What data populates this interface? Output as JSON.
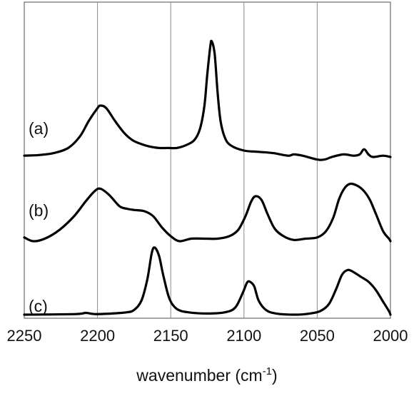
{
  "chart_data": {
    "type": "line",
    "title": "",
    "xlabel_main": "wavenumber (cm",
    "xlabel_sup": "-1",
    "xlabel_close": ")",
    "ylabel": "",
    "xlim": [
      2250,
      2000
    ],
    "x_reversed": true,
    "xticks": [
      2250,
      2200,
      2150,
      2100,
      2050,
      2000
    ],
    "xtick_labels": [
      "2250",
      "2200",
      "2150",
      "2100",
      "2050",
      "2000"
    ],
    "grid": "vertical",
    "line_color": "#000000",
    "series": [
      {
        "name": "(a)",
        "points": [
          [
            2250,
            0.01
          ],
          [
            2240,
            0.015
          ],
          [
            2230,
            0.03
          ],
          [
            2220,
            0.07
          ],
          [
            2212,
            0.16
          ],
          [
            2206,
            0.28
          ],
          [
            2200,
            0.38
          ],
          [
            2198,
            0.4
          ],
          [
            2194,
            0.38
          ],
          [
            2188,
            0.28
          ],
          [
            2182,
            0.19
          ],
          [
            2176,
            0.13
          ],
          [
            2170,
            0.1
          ],
          [
            2164,
            0.08
          ],
          [
            2158,
            0.07
          ],
          [
            2152,
            0.07
          ],
          [
            2146,
            0.07
          ],
          [
            2140,
            0.09
          ],
          [
            2134,
            0.13
          ],
          [
            2130,
            0.22
          ],
          [
            2127,
            0.4
          ],
          [
            2125,
            0.65
          ],
          [
            2123,
            0.86
          ],
          [
            2122,
            0.9
          ],
          [
            2120,
            0.8
          ],
          [
            2118,
            0.5
          ],
          [
            2116,
            0.28
          ],
          [
            2113,
            0.15
          ],
          [
            2109,
            0.09
          ],
          [
            2100,
            0.05
          ],
          [
            2090,
            0.04
          ],
          [
            2080,
            0.03
          ],
          [
            2070,
            0.01
          ],
          [
            2066,
            0.02
          ],
          [
            2060,
            0.01
          ],
          [
            2050,
            -0.02
          ],
          [
            2045,
            -0.02
          ],
          [
            2040,
            0.0
          ],
          [
            2032,
            0.02
          ],
          [
            2025,
            0.01
          ],
          [
            2021,
            0.02
          ],
          [
            2018,
            0.06
          ],
          [
            2015,
            0.02
          ],
          [
            2012,
            0.0
          ],
          [
            2005,
            0.01
          ],
          [
            2000,
            0.0
          ]
        ]
      },
      {
        "name": "(b)",
        "points": [
          [
            2250,
            0.03
          ],
          [
            2244,
            0.0
          ],
          [
            2236,
            0.02
          ],
          [
            2226,
            0.09
          ],
          [
            2216,
            0.2
          ],
          [
            2208,
            0.32
          ],
          [
            2202,
            0.4
          ],
          [
            2198,
            0.42
          ],
          [
            2192,
            0.37
          ],
          [
            2185,
            0.28
          ],
          [
            2180,
            0.26
          ],
          [
            2175,
            0.25
          ],
          [
            2168,
            0.24
          ],
          [
            2162,
            0.2
          ],
          [
            2156,
            0.11
          ],
          [
            2150,
            0.04
          ],
          [
            2144,
            0.0
          ],
          [
            2136,
            0.02
          ],
          [
            2126,
            0.02
          ],
          [
            2118,
            0.02
          ],
          [
            2110,
            0.04
          ],
          [
            2104,
            0.09
          ],
          [
            2099,
            0.2
          ],
          [
            2095,
            0.32
          ],
          [
            2092,
            0.36
          ],
          [
            2088,
            0.33
          ],
          [
            2084,
            0.22
          ],
          [
            2079,
            0.1
          ],
          [
            2073,
            0.04
          ],
          [
            2066,
            0.01
          ],
          [
            2058,
            0.02
          ],
          [
            2050,
            0.03
          ],
          [
            2044,
            0.08
          ],
          [
            2039,
            0.19
          ],
          [
            2035,
            0.34
          ],
          [
            2031,
            0.43
          ],
          [
            2027,
            0.46
          ],
          [
            2022,
            0.44
          ],
          [
            2018,
            0.4
          ],
          [
            2014,
            0.33
          ],
          [
            2010,
            0.22
          ],
          [
            2005,
            0.08
          ],
          [
            2001,
            0.02
          ],
          [
            2000,
            0.0
          ]
        ]
      },
      {
        "name": "(c)",
        "points": [
          [
            2250,
            0.0
          ],
          [
            2215,
            0.005
          ],
          [
            2208,
            0.015
          ],
          [
            2202,
            0.005
          ],
          [
            2190,
            0.01
          ],
          [
            2180,
            0.02
          ],
          [
            2175,
            0.04
          ],
          [
            2170,
            0.12
          ],
          [
            2166,
            0.3
          ],
          [
            2163,
            0.52
          ],
          [
            2161,
            0.57
          ],
          [
            2158,
            0.5
          ],
          [
            2155,
            0.33
          ],
          [
            2151,
            0.14
          ],
          [
            2146,
            0.05
          ],
          [
            2138,
            0.02
          ],
          [
            2125,
            0.01
          ],
          [
            2113,
            0.02
          ],
          [
            2106,
            0.06
          ],
          [
            2101,
            0.18
          ],
          [
            2098,
            0.27
          ],
          [
            2096,
            0.28
          ],
          [
            2093,
            0.24
          ],
          [
            2090,
            0.12
          ],
          [
            2085,
            0.04
          ],
          [
            2078,
            0.01
          ],
          [
            2065,
            0.0
          ],
          [
            2055,
            0.01
          ],
          [
            2048,
            0.03
          ],
          [
            2042,
            0.09
          ],
          [
            2037,
            0.22
          ],
          [
            2033,
            0.34
          ],
          [
            2029,
            0.38
          ],
          [
            2025,
            0.36
          ],
          [
            2020,
            0.32
          ],
          [
            2015,
            0.28
          ],
          [
            2010,
            0.21
          ],
          [
            2005,
            0.11
          ],
          [
            2001,
            0.03
          ],
          [
            2000,
            0.0
          ]
        ]
      }
    ]
  }
}
